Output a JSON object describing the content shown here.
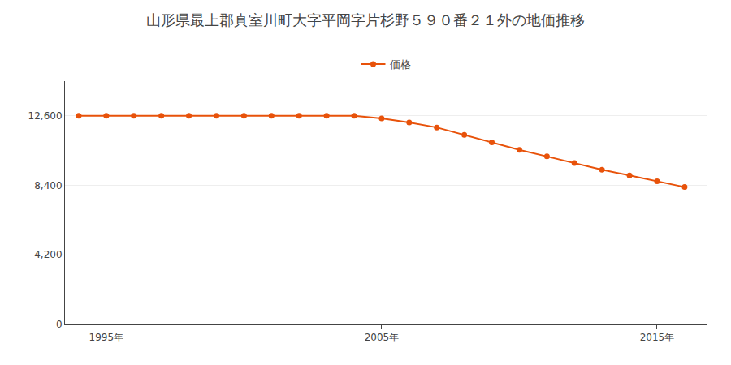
{
  "chart_data": {
    "type": "line",
    "title": "山形県最上郡真室川町大字平岡字片杉野５９０番２１外の地価推移",
    "x": [
      1994,
      1995,
      1996,
      1997,
      1998,
      1999,
      2000,
      2001,
      2002,
      2003,
      2004,
      2005,
      2006,
      2007,
      2008,
      2009,
      2010,
      2011,
      2012,
      2013,
      2014,
      2015,
      2016
    ],
    "series": [
      {
        "name": "価格",
        "color": "#e8520a",
        "marker": "circle",
        "values": [
          12600,
          12600,
          12600,
          12600,
          12600,
          12600,
          12600,
          12600,
          12600,
          12600,
          12600,
          12450,
          12200,
          11900,
          11450,
          11000,
          10550,
          10150,
          9750,
          9350,
          9000,
          8650,
          8300
        ]
      }
    ],
    "xlim": [
      1993.5,
      2016.8
    ],
    "xticks": [
      {
        "value": 1995,
        "label": "1995年"
      },
      {
        "value": 2005,
        "label": "2005年"
      },
      {
        "value": 2015,
        "label": "2015年"
      }
    ],
    "ylim": [
      0,
      14700
    ],
    "yticks": [
      0,
      {
        "value": 4200,
        "label": "4,200"
      },
      {
        "value": 8400,
        "label": "8,400"
      },
      {
        "value": 12600,
        "label": "12,600"
      }
    ],
    "grid": "y",
    "legend": "top"
  }
}
